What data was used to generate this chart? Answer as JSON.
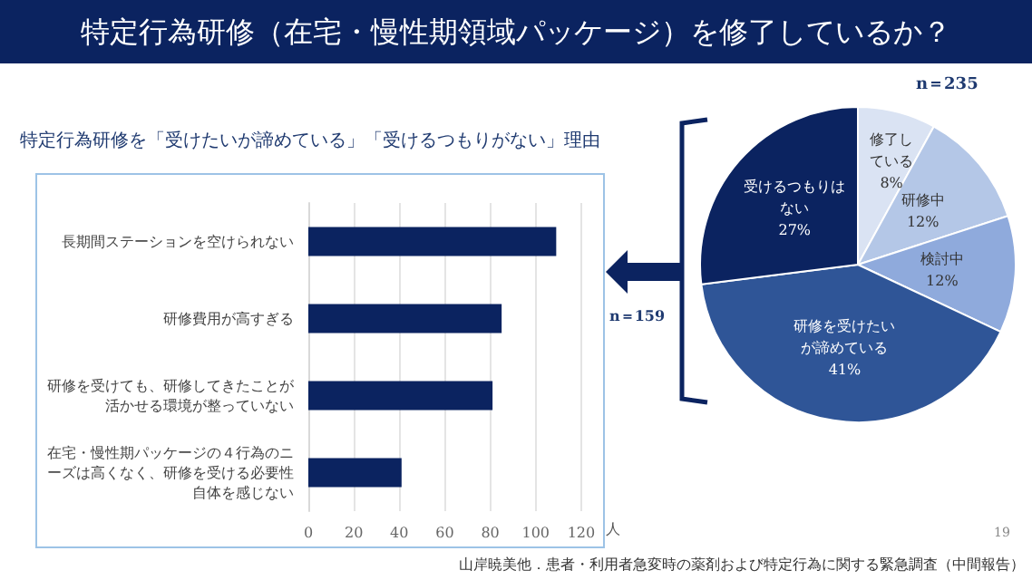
{
  "chart_data": [
    {
      "type": "bar",
      "orientation": "horizontal",
      "title": "特定行為研修を「受けたいが諦めている」「受けるつもりがない」理由",
      "xlabel": "人",
      "categories": [
        "長期間ステーションを空けられない",
        "研修費用が高すぎる",
        "研修を受けても、研修してきたことが活かせる環境が整っていない",
        "在宅・慢性期パッケージの４行為のニーズは高くなく、研修を受ける必要性自体を感じない"
      ],
      "values": [
        109,
        85,
        81,
        41
      ],
      "color": "#0b2360",
      "xlim": [
        0,
        120
      ],
      "xticks": [
        0,
        20,
        40,
        60,
        80,
        100,
        120
      ],
      "grid": "x",
      "annotations": [
        "n＝159",
        "山岸暁美他．患者・利用者急変時の薬剤および特定行為に関する緊急調査（中間報告）",
        "19"
      ]
    },
    {
      "type": "pie",
      "title": "特定行為研修（在宅・慢性期領域パッケージ）を修了しているか？",
      "categories": [
        "修了している",
        "研修中",
        "検討中",
        "研修を受けたいが諦めている",
        "受けるつもりはない"
      ],
      "values": [
        8,
        12,
        12,
        41,
        27
      ],
      "value_labels": [
        "8%",
        "12%",
        "12%",
        "41%",
        "27%"
      ],
      "colors": [
        "#dae3f3",
        "#b4c7e7",
        "#8faadc",
        "#2f5597",
        "#0b2360"
      ],
      "annotations": [
        "n＝235"
      ]
    }
  ]
}
